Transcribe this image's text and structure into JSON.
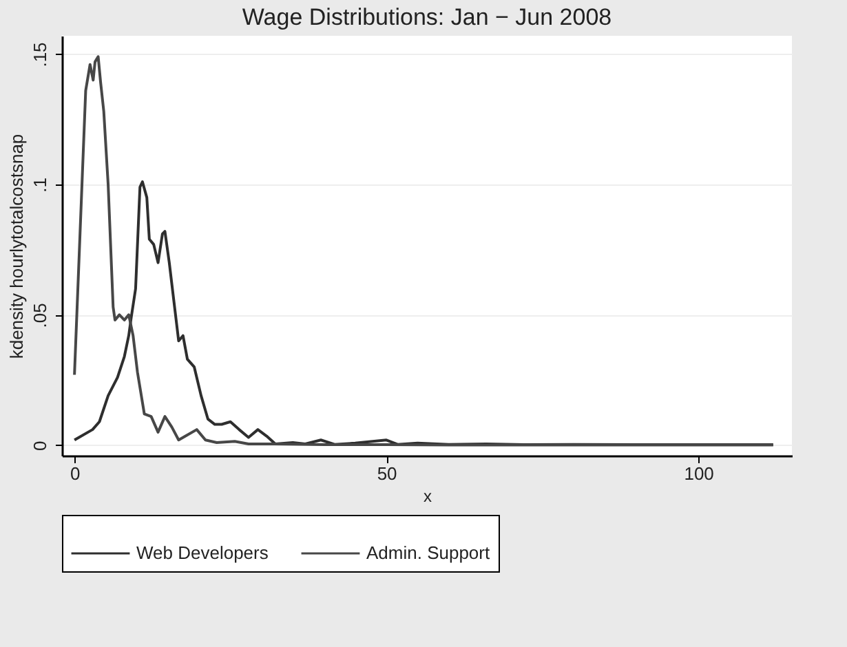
{
  "chart_data": {
    "type": "line",
    "title": "Wage Distributions: Jan − Jun 2008",
    "xlabel": "x",
    "ylabel": "kdensity hourlytotalcostsnap",
    "xlim": [
      -2,
      115
    ],
    "xticks": [
      0,
      50,
      100
    ],
    "ylim": [
      -0.004,
      0.157
    ],
    "yticks": [
      0,
      {
        "value": 0.05,
        "label": ".05"
      },
      {
        "value": 0.1,
        "label": ".1"
      },
      {
        "value": 0.15,
        "label": ".15"
      }
    ],
    "grid": "y",
    "legend": "bottom",
    "series": [
      {
        "name": "Web Developers",
        "color": "#2e2e2e",
        "x": [
          0,
          2.9,
          4,
          5.4,
          6.9,
          8,
          8.7,
          9.1,
          9.8,
          10.5,
          10.9,
          11.6,
          12,
          12.7,
          13.4,
          14.1,
          14.5,
          15.2,
          15.9,
          16.7,
          17.4,
          18.1,
          19.2,
          20.3,
          21.4,
          22.5,
          23.6,
          25,
          26.4,
          27.9,
          29.4,
          30.8,
          32.2,
          35,
          37,
          39.5,
          41.7,
          45,
          50,
          51.8,
          55,
          60,
          66,
          72,
          80,
          90,
          100,
          112
        ],
        "values": [
          0.002,
          0.006,
          0.009,
          0.019,
          0.026,
          0.034,
          0.042,
          0.049,
          0.06,
          0.099,
          0.101,
          0.095,
          0.079,
          0.077,
          0.07,
          0.081,
          0.082,
          0.07,
          0.056,
          0.04,
          0.042,
          0.033,
          0.03,
          0.019,
          0.01,
          0.008,
          0.008,
          0.009,
          0.006,
          0.003,
          0.006,
          0.0035,
          0.0005,
          0.001,
          0.0005,
          0.002,
          0.0003,
          0.0008,
          0.002,
          0.0003,
          0.0008,
          0.0003,
          0.0005,
          0.0002,
          0.0003,
          0.0002,
          0.0002,
          0.0002
        ]
      },
      {
        "name": "Admin. Support",
        "color": "#474747",
        "x": [
          0,
          1.8,
          2.5,
          3,
          3.3,
          3.8,
          4.2,
          4.7,
          5.4,
          6.2,
          6.5,
          7.2,
          8,
          8.7,
          9.4,
          10.1,
          11.2,
          12.3,
          13.4,
          14.5,
          15.6,
          16.7,
          17.8,
          19.6,
          21,
          22.8,
          25.7,
          27.9,
          32,
          40,
          50,
          60,
          80,
          100,
          112
        ],
        "values": [
          0.027,
          0.136,
          0.146,
          0.14,
          0.147,
          0.149,
          0.139,
          0.128,
          0.1,
          0.053,
          0.048,
          0.05,
          0.048,
          0.05,
          0.042,
          0.028,
          0.012,
          0.011,
          0.005,
          0.011,
          0.007,
          0.002,
          0.0035,
          0.006,
          0.002,
          0.001,
          0.0015,
          0.0005,
          0.0005,
          0.0002,
          0.0002,
          0.0001,
          0.0001,
          0.0001,
          0.0001
        ]
      }
    ]
  }
}
